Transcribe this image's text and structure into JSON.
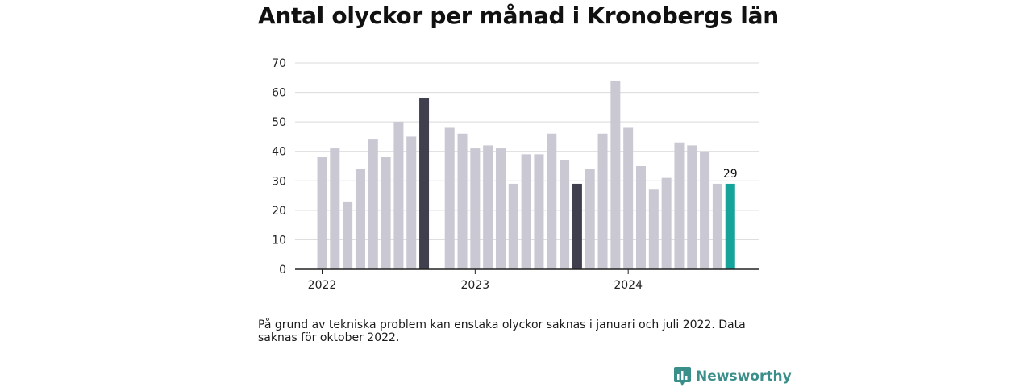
{
  "title": "Antal olyckor per månad i Kronobergs län",
  "note": "På grund av tekniska problem kan enstaka olyckor saknas i januari och juli 2022. Data saknas för oktober 2022.",
  "brand": "Newsworthy",
  "colors": {
    "default": "#c9c8d3",
    "highlight": "#403f4d",
    "latest": "#15a39a",
    "brand": "#3b8f8a"
  },
  "chart_data": {
    "type": "bar",
    "title": "Antal olyckor per månad i Kronobergs län",
    "xlabel": "",
    "ylabel": "",
    "ylim": [
      0,
      70
    ],
    "yticks": [
      0,
      10,
      20,
      30,
      40,
      50,
      60,
      70
    ],
    "grid": true,
    "x_year_labels": [
      {
        "label": "2022",
        "month_index": 0
      },
      {
        "label": "2023",
        "month_index": 12
      },
      {
        "label": "2024",
        "month_index": 24
      }
    ],
    "months": [
      "2022-01",
      "2022-02",
      "2022-03",
      "2022-04",
      "2022-05",
      "2022-06",
      "2022-07",
      "2022-08",
      "2022-09",
      "2022-10",
      "2022-11",
      "2022-12",
      "2023-01",
      "2023-02",
      "2023-03",
      "2023-04",
      "2023-05",
      "2023-06",
      "2023-07",
      "2023-08",
      "2023-09",
      "2023-10",
      "2023-11",
      "2023-12",
      "2024-01",
      "2024-02",
      "2024-03",
      "2024-04",
      "2024-05",
      "2024-06",
      "2024-07",
      "2024-08",
      "2024-09",
      "2024-10"
    ],
    "values": [
      38,
      41,
      23,
      34,
      44,
      38,
      50,
      45,
      58,
      null,
      48,
      46,
      41,
      42,
      41,
      29,
      39,
      39,
      46,
      37,
      29,
      34,
      46,
      64,
      48,
      35,
      27,
      31,
      43,
      42,
      40,
      29,
      29,
      null
    ],
    "highlight": [
      "2022-09",
      "2023-09"
    ],
    "latest": "2024-09",
    "latest_label": "29"
  }
}
